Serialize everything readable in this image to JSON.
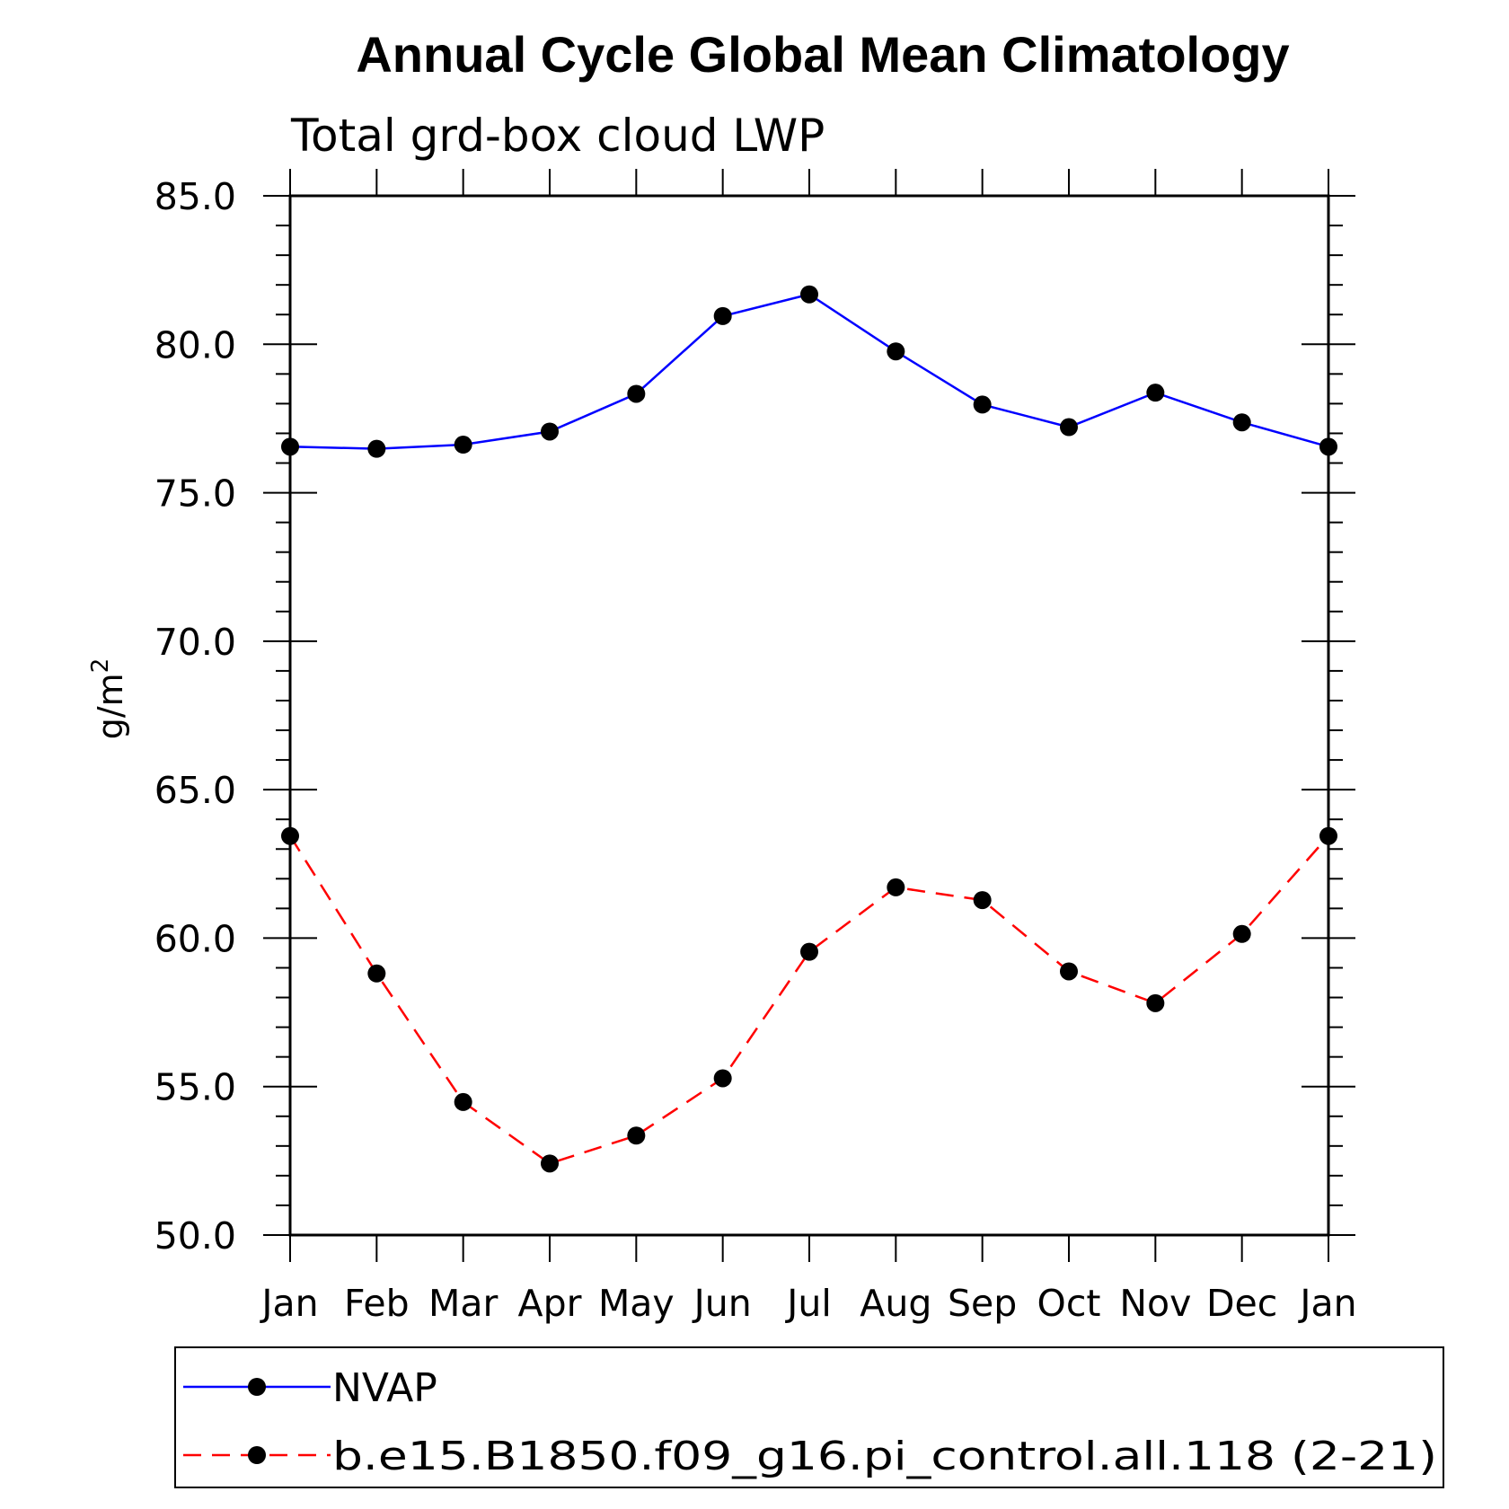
{
  "chart_data": {
    "type": "line",
    "title": "Annual Cycle Global Mean Climatology",
    "subtitle": "Total grd-box cloud LWP",
    "ylabel": "g/m",
    "ylabel_sup": "2",
    "xlabel": "",
    "categories": [
      "Jan",
      "Feb",
      "Mar",
      "Apr",
      "May",
      "Jun",
      "Jul",
      "Aug",
      "Sep",
      "Oct",
      "Nov",
      "Dec",
      "Jan"
    ],
    "ylim": [
      50.0,
      85.0
    ],
    "yticks": [
      "50.0",
      "55.0",
      "60.0",
      "65.0",
      "70.0",
      "75.0",
      "80.0",
      "85.0"
    ],
    "grid": false,
    "legend_position": "bottom",
    "series": [
      {
        "name": "NVAP",
        "color": "#0000ff",
        "dash": "solid",
        "marker": "filled-circle",
        "values": [
          76.55,
          76.48,
          76.62,
          77.06,
          78.33,
          80.95,
          81.68,
          79.76,
          77.97,
          77.21,
          78.37,
          77.37,
          76.55
        ]
      },
      {
        "name": "b.e15.B1850.f09_g16.pi_control.all.118 (2-21)",
        "color": "#ff0000",
        "dash": "dashed",
        "marker": "filled-circle",
        "values": [
          63.44,
          58.81,
          54.48,
          52.41,
          53.35,
          55.28,
          59.54,
          61.71,
          61.28,
          58.88,
          57.81,
          60.14,
          63.44
        ]
      }
    ]
  }
}
